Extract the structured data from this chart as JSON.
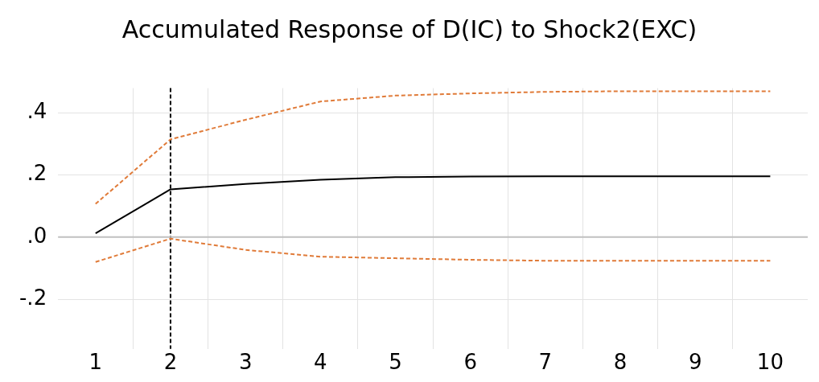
{
  "chart_data": {
    "type": "line",
    "title": "Accumulated Response of D(IC) to Shock2(EXC)",
    "x": [
      1,
      2,
      3,
      4,
      5,
      6,
      7,
      8,
      9,
      10
    ],
    "series": [
      {
        "color": "#000000",
        "line_style": "solid",
        "values": [
          0.012,
          0.154,
          0.171,
          0.185,
          0.193,
          0.195,
          0.196,
          0.196,
          0.196,
          0.196
        ]
      },
      {
        "color": "#e07b39",
        "line_style": "dashed",
        "values": [
          0.107,
          0.315,
          0.378,
          0.437,
          0.456,
          0.463,
          0.468,
          0.47,
          0.47,
          0.47
        ]
      },
      {
        "color": "#e07b39",
        "line_style": "dashed",
        "values": [
          -0.08,
          -0.005,
          -0.041,
          -0.063,
          -0.068,
          -0.073,
          -0.076,
          -0.076,
          -0.076,
          -0.076
        ]
      }
    ],
    "xlim": [
      0.5,
      10.5
    ],
    "xticks": [
      1,
      {
        "value": 1.5,
        "label": null
      },
      2,
      {
        "value": 2.5,
        "label": null
      },
      3,
      {
        "value": 3.5,
        "label": null
      },
      4,
      {
        "value": 4.5,
        "label": null
      },
      5,
      {
        "value": 5.5,
        "label": null
      },
      6,
      {
        "value": 6.5,
        "label": null
      },
      7,
      {
        "value": 7.5,
        "label": null
      },
      8,
      {
        "value": 8.5,
        "label": null
      },
      9,
      {
        "value": 9.5,
        "label": null
      },
      10
    ],
    "ylim": [
      -0.36,
      0.48
    ],
    "yticks": [
      {
        "value": -0.2,
        "label": "-.2"
      },
      {
        "value": 0,
        "label": ".0"
      },
      {
        "value": 0.2,
        "label": ".2"
      },
      {
        "value": 0.4,
        "label": ".4"
      }
    ],
    "grid": true,
    "legend": false,
    "marker": "none",
    "ref_lines": [
      {
        "axis": "x",
        "value": 2,
        "color": "#000000",
        "line_style": "dashed"
      },
      {
        "axis": "y",
        "value": 0,
        "color": "#c0c0c0",
        "line_style": "solid"
      }
    ]
  }
}
